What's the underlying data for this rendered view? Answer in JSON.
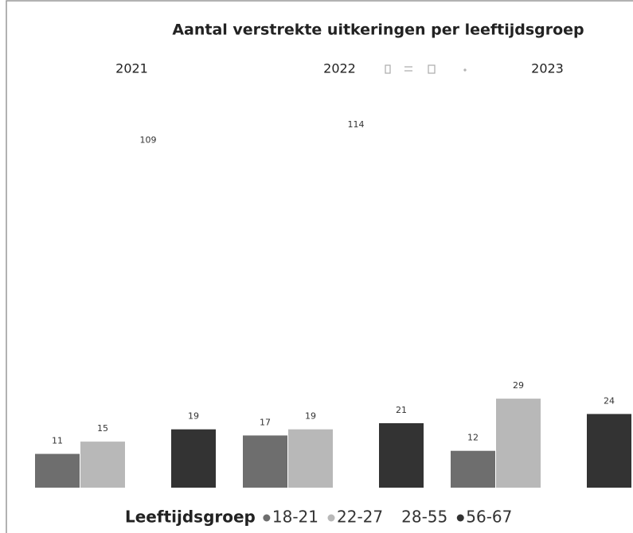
{
  "chart_data": {
    "type": "bar",
    "title": "Aantal verstrekte uitkeringen per leeftijdsgroep",
    "categories": [
      "2021",
      "2022",
      "2023"
    ],
    "legend_title": "Leeftijdsgroep",
    "series": [
      {
        "name": "18-21",
        "color": "#6e6e6e",
        "values": [
          11,
          17,
          12
        ]
      },
      {
        "name": "22-27",
        "color": "#b8b8b8",
        "values": [
          15,
          19,
          29
        ]
      },
      {
        "name": "28-55",
        "color": "#ffffff",
        "values": [
          109,
          114,
          null
        ]
      },
      {
        "name": "56-67",
        "color": "#333333",
        "values": [
          19,
          21,
          24
        ]
      }
    ],
    "ylim": [
      0,
      120
    ],
    "legend": "bottom"
  }
}
